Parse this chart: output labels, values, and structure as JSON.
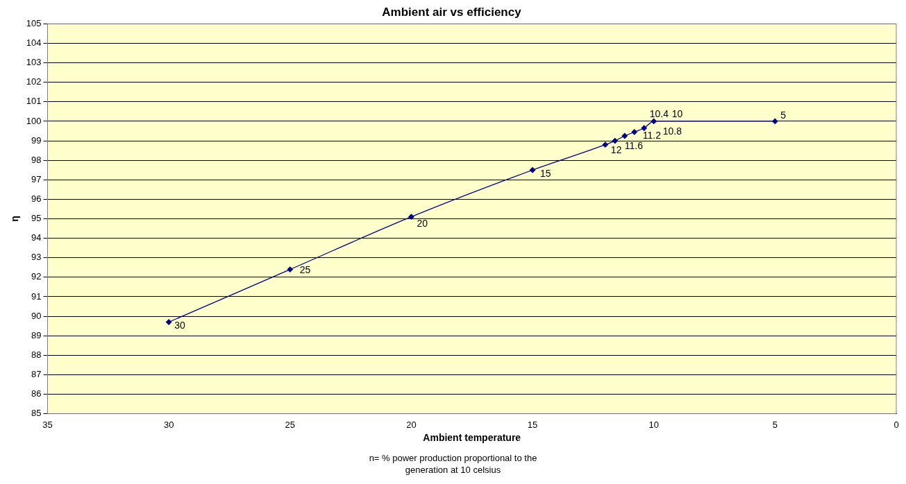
{
  "chart_data": {
    "type": "line",
    "title": "Ambient air vs efficiency",
    "xlabel": "Ambient temperature",
    "ylabel": "η",
    "x": [
      30,
      25,
      20,
      15,
      12,
      11.6,
      11.2,
      10.8,
      10.4,
      10,
      5
    ],
    "series": [
      {
        "color": "#000080",
        "values": [
          89.7,
          92.4,
          95.1,
          97.5,
          98.8,
          99.0,
          99.25,
          99.45,
          99.65,
          100,
          100
        ]
      }
    ],
    "xlim": [
      35,
      0
    ],
    "xticks": [
      35,
      30,
      25,
      20,
      15,
      10,
      5,
      0
    ],
    "ylim": [
      85,
      105
    ],
    "yticks": [
      85,
      86,
      87,
      88,
      89,
      90,
      91,
      92,
      93,
      94,
      95,
      96,
      97,
      98,
      99,
      100,
      101,
      102,
      103,
      104,
      105
    ],
    "grid": "y",
    "legend": false,
    "marker": "diamond",
    "line_style": "solid",
    "annotations": [
      {
        "text": "30",
        "x": 30,
        "y": 89.7
      },
      {
        "text": "25",
        "x": 25,
        "y": 92.4
      },
      {
        "text": "20",
        "x": 20,
        "y": 95.1
      },
      {
        "text": "15",
        "x": 15,
        "y": 97.5
      },
      {
        "text": "12",
        "x": 12,
        "y": 98.8
      },
      {
        "text": "11.6",
        "x": 11.6,
        "y": 99.0
      },
      {
        "text": "11.2",
        "x": 11.2,
        "y": 99.25
      },
      {
        "text": "10.8",
        "x": 10.8,
        "y": 99.45
      },
      {
        "text": "10.4",
        "x": 10.4,
        "y": 99.65
      },
      {
        "text": "10",
        "x": 10,
        "y": 100
      },
      {
        "text": "5",
        "x": 5,
        "y": 100
      },
      "n= % power production proportional to the generation at 10 celsius"
    ]
  }
}
